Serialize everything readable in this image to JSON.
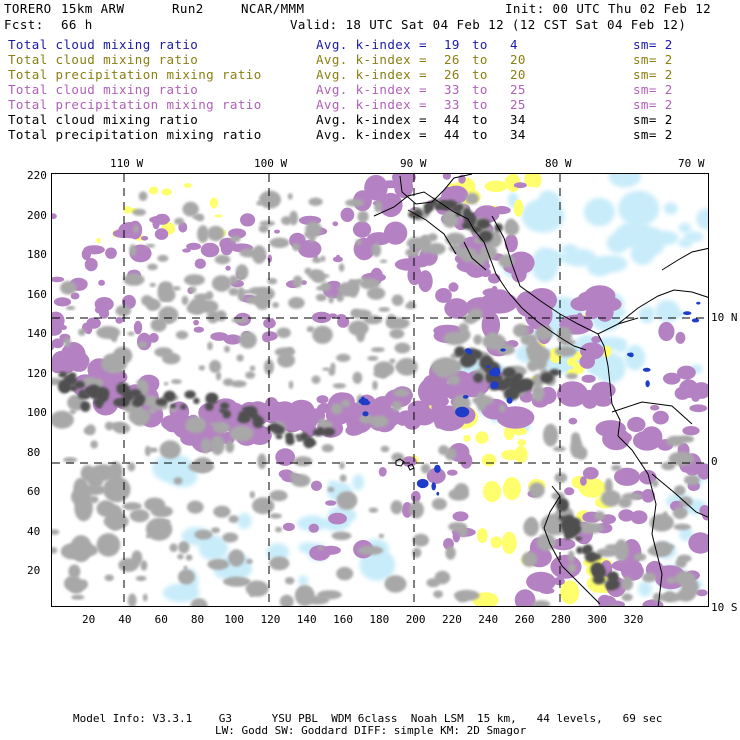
{
  "header": {
    "model": "TORERO",
    "grid": "15km ARW",
    "run": "Run2",
    "center": "NCAR/MMM",
    "init": "Init: 00 UTC Thu 02 Feb 12",
    "fcst_label": "Fcst:",
    "fcst_hours": "66 h",
    "valid": "Valid: 18 UTC Sat 04 Feb 12 (12 CST Sat 04 Feb 12)"
  },
  "legend": [
    {
      "field": "Total cloud mixing ratio",
      "avg": "Avg. k-index =",
      "from": "19",
      "to_word": "to",
      "to": "4",
      "sm": "sm= 2",
      "color": "#1a1aa8"
    },
    {
      "field": "Total cloud mixing ratio",
      "avg": "Avg. k-index =",
      "from": "26",
      "to_word": "to",
      "to": "20",
      "sm": "sm= 2",
      "color": "#8a7f12"
    },
    {
      "field": "Total precipitation mixing ratio",
      "avg": "Avg. k-index =",
      "from": "26",
      "to_word": "to",
      "to": "20",
      "sm": "sm= 2",
      "color": "#8a7f12"
    },
    {
      "field": "Total cloud mixing ratio",
      "avg": "Avg. k-index =",
      "from": "33",
      "to_word": "to",
      "to": "25",
      "sm": "sm= 2",
      "color": "#b060b8"
    },
    {
      "field": "Total precipitation mixing ratio",
      "avg": "Avg. k-index =",
      "from": "33",
      "to_word": "to",
      "to": "25",
      "sm": "sm= 2",
      "color": "#b060b8"
    },
    {
      "field": "Total cloud mixing ratio",
      "avg": "Avg. k-index =",
      "from": "44",
      "to_word": "to",
      "to": "34",
      "sm": "sm= 2",
      "color": "#000000"
    },
    {
      "field": "Total precipitation mixing ratio",
      "avg": "Avg. k-index =",
      "from": "44",
      "to_word": "to",
      "to": "34",
      "sm": "sm= 2",
      "color": "#000000"
    }
  ],
  "map": {
    "longitude_labels": [
      "110 W",
      "100 W",
      "90 W",
      "80 W",
      "70 W"
    ],
    "latitude_labels": [
      "10 N",
      "0",
      "10 S"
    ],
    "y_ticks": [
      "20",
      "40",
      "60",
      "80",
      "100",
      "120",
      "140",
      "160",
      "180",
      "200",
      "220"
    ],
    "x_ticks": [
      "20",
      "40",
      "60",
      "80",
      "100",
      "120",
      "140",
      "160",
      "180",
      "200",
      "220",
      "240",
      "260",
      "280",
      "300",
      "320"
    ],
    "colors": {
      "light_blue": "#c8ecfa",
      "dark_blue": "#1e3cc8",
      "yellow": "#ffff6e",
      "purple": "#b482c2",
      "gray": "#a8a8a8",
      "dark_gray": "#505050"
    }
  },
  "footer": {
    "line1": "Model Info: V3.3.1    G3      YSU PBL  WDM 6class  Noah LSM  15 km,   44 levels,   69 sec",
    "line2": "LW: Godd SW: Goddard DIFF: simple KM: 2D Smagor"
  }
}
